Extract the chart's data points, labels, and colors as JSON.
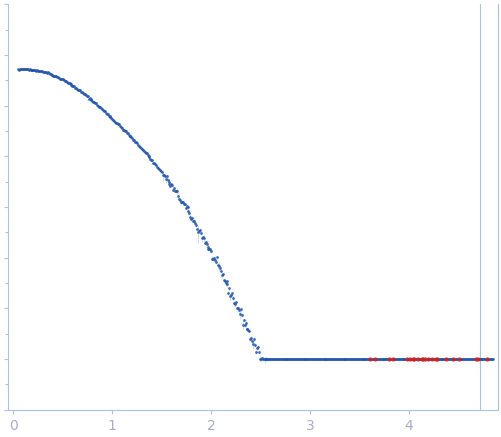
{
  "xlim": [
    -0.05,
    4.9
  ],
  "x_ticks": [
    0,
    1,
    2,
    3,
    4
  ],
  "background_color": "#ffffff",
  "dot_color_main": "#2255aa",
  "dot_color_outlier": "#cc2222",
  "error_bar_color": "#b8d0e8",
  "spine_color": "#aac4e0",
  "tick_color": "#aac4e0",
  "tick_label_color": "#aaaacc"
}
